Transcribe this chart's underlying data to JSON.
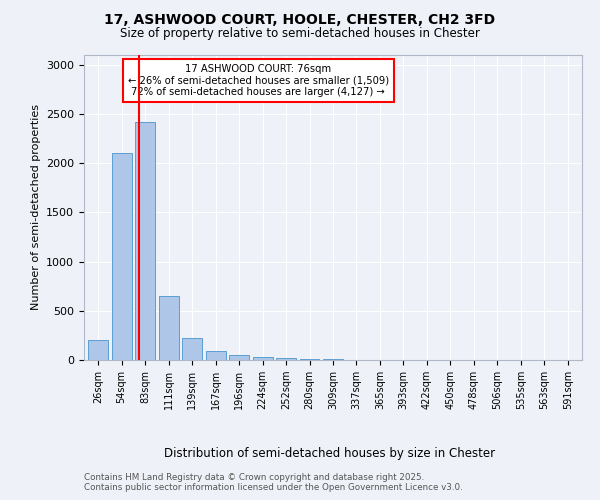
{
  "title1": "17, ASHWOOD COURT, HOOLE, CHESTER, CH2 3FD",
  "title2": "Size of property relative to semi-detached houses in Chester",
  "xlabel": "Distribution of semi-detached houses by size in Chester",
  "ylabel": "Number of semi-detached properties",
  "categories": [
    "26sqm",
    "54sqm",
    "83sqm",
    "111sqm",
    "139sqm",
    "167sqm",
    "196sqm",
    "224sqm",
    "252sqm",
    "280sqm",
    "309sqm",
    "337sqm",
    "365sqm",
    "393sqm",
    "422sqm",
    "450sqm",
    "478sqm",
    "506sqm",
    "535sqm",
    "563sqm",
    "591sqm"
  ],
  "values": [
    200,
    2100,
    2420,
    650,
    220,
    90,
    50,
    35,
    20,
    15,
    10,
    3,
    2,
    1,
    1,
    0,
    0,
    0,
    0,
    0,
    0
  ],
  "bar_color": "#aec6e8",
  "bar_edge_color": "#5a9fd4",
  "annotation_title": "17 ASHWOOD COURT: 76sqm",
  "annotation_line1": "← 26% of semi-detached houses are smaller (1,509)",
  "annotation_line2": "72% of semi-detached houses are larger (4,127) →",
  "footer1": "Contains HM Land Registry data © Crown copyright and database right 2025.",
  "footer2": "Contains public sector information licensed under the Open Government Licence v3.0.",
  "ylim": [
    0,
    3100
  ],
  "background_color": "#eef2f8",
  "plot_background": "#eef2f8"
}
